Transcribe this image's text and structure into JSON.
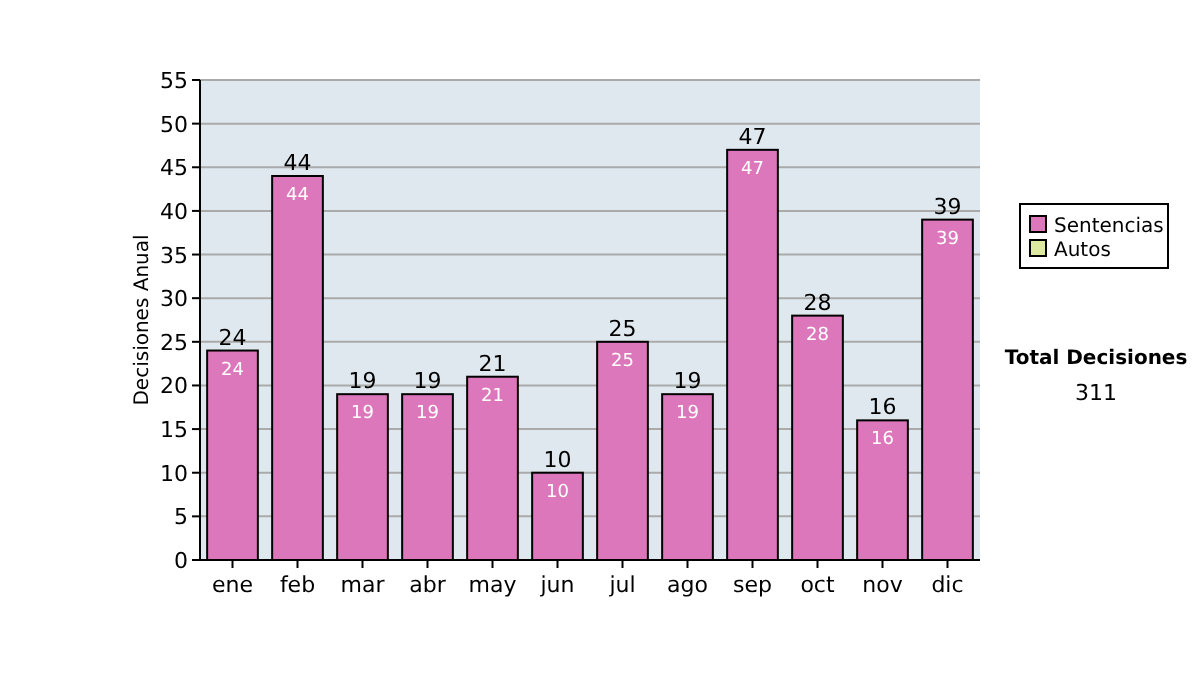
{
  "chart_data": {
    "type": "bar",
    "ylabel": "Decisiones Anual",
    "categories": [
      "ene",
      "feb",
      "mar",
      "abr",
      "may",
      "jun",
      "jul",
      "ago",
      "sep",
      "oct",
      "nov",
      "dic"
    ],
    "series": [
      {
        "name": "Sentencias",
        "color": "#dd77bb",
        "values": [
          24,
          44,
          19,
          19,
          21,
          10,
          25,
          19,
          47,
          28,
          16,
          39
        ]
      },
      {
        "name": "Autos",
        "color": "#dde8a0",
        "values": [
          null,
          null,
          null,
          null,
          null,
          null,
          null,
          null,
          null,
          null,
          null,
          null
        ]
      }
    ],
    "stacked": true,
    "data_labels": true,
    "totals": [
      "24",
      "44",
      "19",
      "19",
      "21",
      "10",
      "25",
      "19",
      "47",
      "28",
      "16",
      "39"
    ],
    "ylim": [
      0,
      55
    ],
    "yticks": [
      0,
      5,
      10,
      15,
      20,
      25,
      30,
      35,
      40,
      45,
      50,
      55
    ],
    "grid": "y",
    "legend": "right",
    "annotations": [
      "Total Decisiones",
      "311"
    ]
  }
}
